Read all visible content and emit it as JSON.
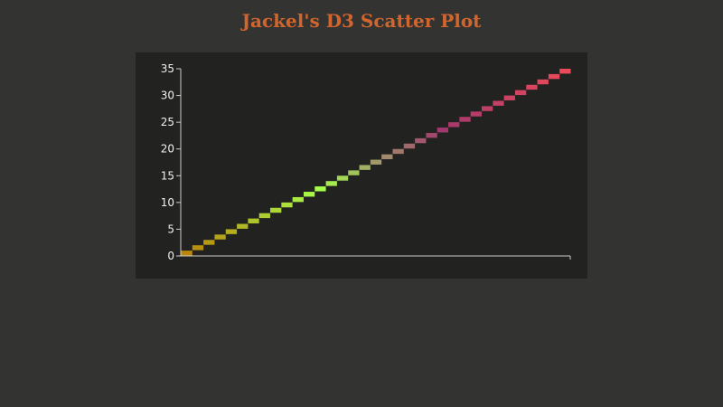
{
  "chart_data": {
    "type": "scatter",
    "title": "Jackel's D3 Scatter Plot",
    "xlabel": "",
    "ylabel": "",
    "xlim": [
      0,
      35
    ],
    "ylim": [
      0,
      35
    ],
    "yticks": [
      "0",
      "5",
      "10",
      "15",
      "20",
      "25",
      "30",
      "35"
    ],
    "xticks": [],
    "grid": false,
    "marker": "rectangle",
    "x": [
      0,
      1,
      2,
      3,
      4,
      5,
      6,
      7,
      8,
      9,
      10,
      11,
      12,
      13,
      14,
      15,
      16,
      17,
      18,
      19,
      20,
      21,
      22,
      23,
      24,
      25,
      26,
      27,
      28,
      29,
      30,
      31,
      32,
      33,
      34
    ],
    "y": [
      0,
      1,
      2,
      3,
      4,
      5,
      6,
      7,
      8,
      9,
      10,
      11,
      12,
      13,
      14,
      15,
      16,
      17,
      18,
      19,
      20,
      21,
      22,
      23,
      24,
      25,
      26,
      27,
      28,
      29,
      30,
      31,
      32,
      33,
      34
    ],
    "color_stops": [
      {
        "at": 0,
        "color": "#b8860b"
      },
      {
        "at": 12,
        "color": "#a6ff4a"
      },
      {
        "at": 17,
        "color": "#a09a6a"
      },
      {
        "at": 23,
        "color": "#a3386e"
      },
      {
        "at": 34,
        "color": "#ec4a58"
      }
    ]
  },
  "colors": {
    "background": "#333432",
    "chart_background": "#222221",
    "title": "#d2652d",
    "axis": "#cccccc"
  }
}
